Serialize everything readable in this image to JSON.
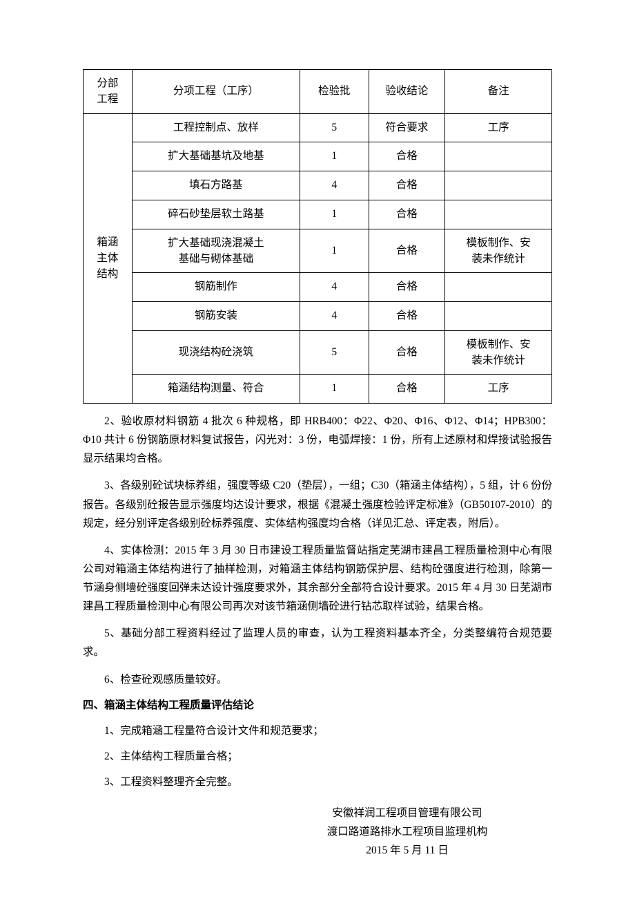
{
  "table": {
    "headers": {
      "col1": "分部\n工程",
      "col2": "分项工程（工序）",
      "col3": "检验批",
      "col4": "验收结论",
      "col5": "备注"
    },
    "rowspan_label": "箱涵\n主体\n结构",
    "rows": [
      {
        "c2": "工程控制点、放样",
        "c3": "5",
        "c4": "符合要求",
        "c5": "工序"
      },
      {
        "c2": "扩大基础基坑及地基",
        "c3": "1",
        "c4": "合格",
        "c5": ""
      },
      {
        "c2": "填石方路基",
        "c3": "4",
        "c4": "合格",
        "c5": ""
      },
      {
        "c2": "碎石砂垫层软土路基",
        "c3": "1",
        "c4": "合格",
        "c5": ""
      },
      {
        "c2": "扩大基础现浇混凝土\n基础与砌体基础",
        "c3": "1",
        "c4": "合格",
        "c5": "模板制作、安\n装未作统计"
      },
      {
        "c2": "钢筋制作",
        "c3": "4",
        "c4": "合格",
        "c5": ""
      },
      {
        "c2": "钢筋安装",
        "c3": "4",
        "c4": "合格",
        "c5": ""
      },
      {
        "c2": "现浇结构砼浇筑",
        "c3": "5",
        "c4": "合格",
        "c5": "模板制作、安\n装未作统计"
      },
      {
        "c2": "箱涵结构测量、符合",
        "c3": "1",
        "c4": "合格",
        "c5": "工序"
      }
    ]
  },
  "paragraphs": {
    "p2": "2、验收原材料钢筋 4 批次 6 种规格，即 HRB400：Φ22、Φ20、Φ16、Φ12、Φ14；HPB300：Φ10 共计 6 份钢筋原材料复试报告，闪光对：3 份，电弧焊接：1 份，所有上述原材和焊接试验报告显示结果均合格。",
    "p3": "3、各级别砼试块标养组，强度等级 C20（垫层），一组；C30（箱涵主体结构），5 组，计 6 份份报告。各级别砼报告显示强度均达设计要求，根据《混凝土强度检验评定标准》（GB50107-2010）的规定，经分别评定各级别砼标养强度、实体结构强度均合格（详见汇总、评定表，附后）。",
    "p4": "4、实体检测：2015 年 3 月 30 日市建设工程质量监督站指定芜湖市建昌工程质量检测中心有限公司对箱涵主体结构进行了抽样检测，对箱涵主体结构钢筋保护层、结构砼强度进行检测，除第一节涵身侧墙砼强度回弹未达设计强度要求外，其余部分全部符合设计要求。2015 年 4 月 30 日芜湖市建昌工程质量检测中心有限公司再次对该节箱涵侧墙砼进行钻芯取样试验，结果合格。",
    "p5": "5、基础分部工程资料经过了监理人员的审查，认为工程资料基本齐全，分类整编符合规范要求。",
    "p6": "6、检查砼观感质量较好。"
  },
  "section4_header": "四、箱涵主体结构工程质量评估结论",
  "conclusions": {
    "c1": "1、完成箱涵工程量符合设计文件和规范要求；",
    "c2": "2、主体结构工程质量合格；",
    "c3": "3、工程资料整理齐全完整。"
  },
  "signature": {
    "line1": "安徽祥润工程项目管理有限公司",
    "line2": "渡口路道路排水工程项目监理机构",
    "line3": "2015 年 5 月 11 日"
  }
}
